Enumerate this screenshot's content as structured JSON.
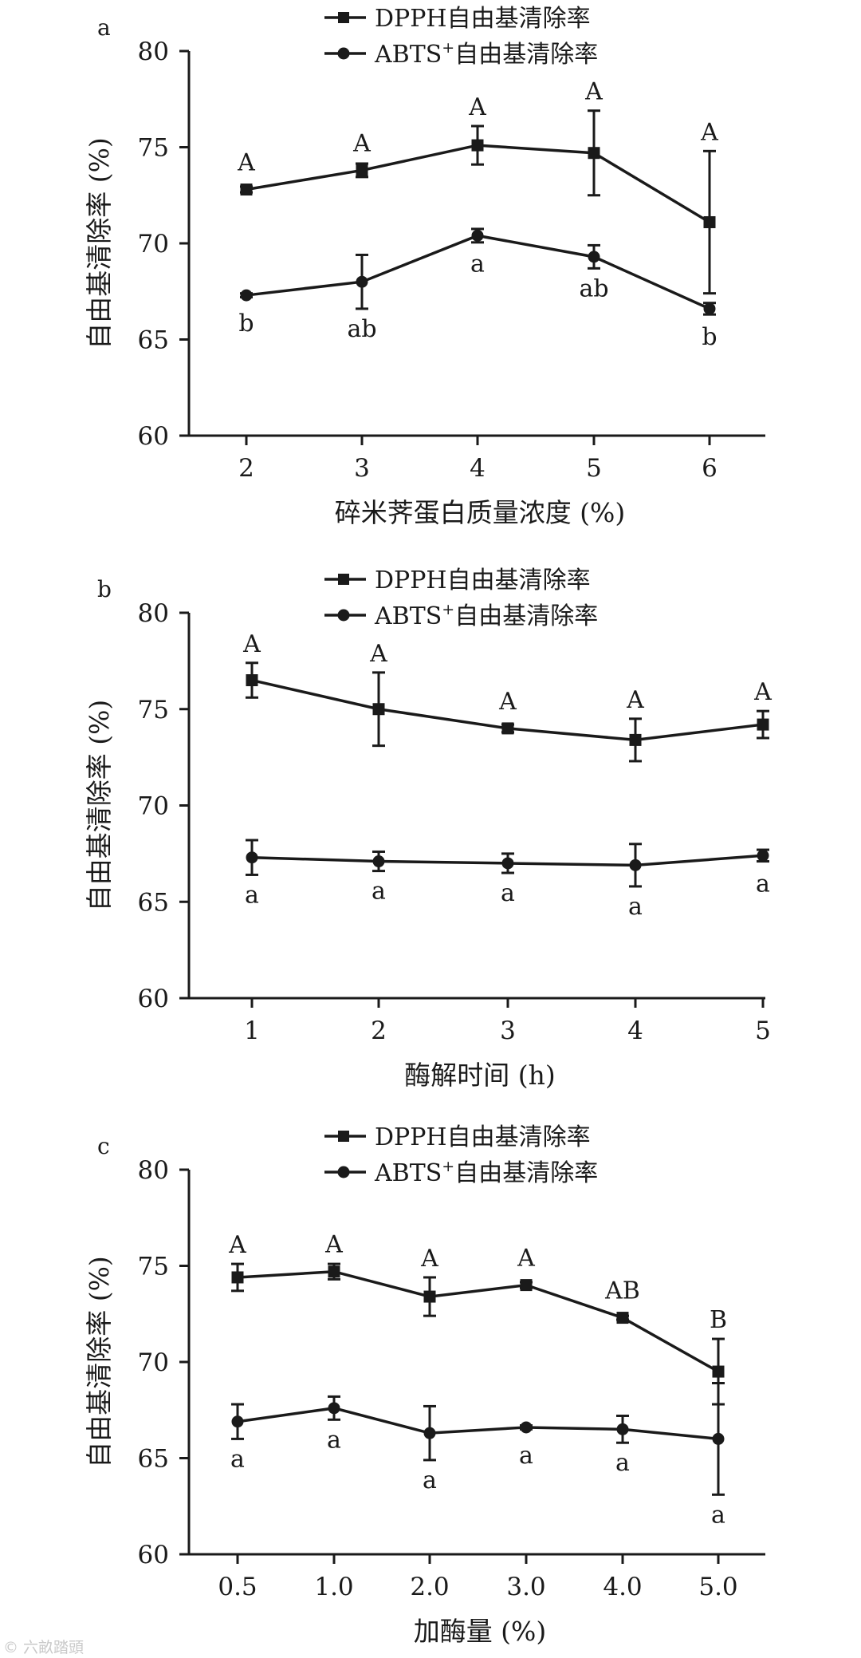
{
  "watermark": "© 六畝踏頭",
  "legend": {
    "dpph": "DPPH自由基清除率",
    "abts_prefix": "ABTS",
    "abts_sup": "+",
    "abts_suffix": "自由基清除率"
  },
  "chart_data": [
    {
      "panel": "a",
      "type": "line",
      "xlabel": "碎米荠蛋白质量浓度 (%)",
      "ylabel": "自由基清除率 (%)",
      "categories": [
        "2",
        "3",
        "4",
        "5",
        "6"
      ],
      "ylim": [
        60,
        80
      ],
      "yticks": [
        "60",
        "65",
        "70",
        "75",
        "80"
      ],
      "series": [
        {
          "name": "DPPH自由基清除率",
          "marker": "square",
          "values": [
            72.8,
            73.8,
            75.1,
            74.7,
            71.1
          ],
          "errors": [
            0.15,
            0.35,
            1.0,
            2.2,
            3.7
          ],
          "labels": [
            "A",
            "A",
            "A",
            "A",
            "A"
          ]
        },
        {
          "name": "ABTS+自由基清除率",
          "marker": "circle",
          "values": [
            67.3,
            68.0,
            70.4,
            69.3,
            66.6
          ],
          "errors": [
            0.1,
            1.4,
            0.35,
            0.6,
            0.3
          ],
          "labels": [
            "b",
            "ab",
            "a",
            "ab",
            "b"
          ]
        }
      ]
    },
    {
      "panel": "b",
      "type": "line",
      "xlabel": "酶解时间 (h)",
      "ylabel": "自由基清除率 (%)",
      "categories": [
        "1",
        "2",
        "3",
        "4",
        "5"
      ],
      "ylim": [
        60,
        80
      ],
      "yticks": [
        "60",
        "65",
        "70",
        "75",
        "80"
      ],
      "series": [
        {
          "name": "DPPH自由基清除率",
          "marker": "square",
          "values": [
            76.5,
            75.0,
            74.0,
            73.4,
            74.2
          ],
          "errors": [
            0.9,
            1.9,
            0.2,
            1.1,
            0.7
          ],
          "labels": [
            "A",
            "A",
            "A",
            "A",
            "A"
          ]
        },
        {
          "name": "ABTS+自由基清除率",
          "marker": "circle",
          "values": [
            67.3,
            67.1,
            67.0,
            66.9,
            67.4
          ],
          "errors": [
            0.9,
            0.5,
            0.5,
            1.1,
            0.3
          ],
          "labels": [
            "a",
            "a",
            "a",
            "a",
            "a"
          ]
        }
      ]
    },
    {
      "panel": "c",
      "type": "line",
      "xlabel": "加酶量 (%)",
      "ylabel": "自由基清除率 (%)",
      "categories": [
        "0.5",
        "1.0",
        "2.0",
        "3.0",
        "4.0",
        "5.0"
      ],
      "ylim": [
        60,
        80
      ],
      "yticks": [
        "60",
        "65",
        "70",
        "75",
        "80"
      ],
      "series": [
        {
          "name": "DPPH自由基清除率",
          "marker": "square",
          "values": [
            74.4,
            74.7,
            73.4,
            74.0,
            72.3,
            69.5
          ],
          "errors": [
            0.7,
            0.4,
            1.0,
            0.15,
            0.1,
            1.7
          ],
          "labels": [
            "A",
            "A",
            "A",
            "A",
            "AB",
            "B"
          ]
        },
        {
          "name": "ABTS+自由基清除率",
          "marker": "circle",
          "values": [
            66.9,
            67.6,
            66.3,
            66.6,
            66.5,
            66.0
          ],
          "errors": [
            0.9,
            0.6,
            1.4,
            0.1,
            0.7,
            2.9
          ],
          "labels": [
            "a",
            "a",
            "a",
            "a",
            "a",
            "a"
          ]
        }
      ]
    }
  ]
}
